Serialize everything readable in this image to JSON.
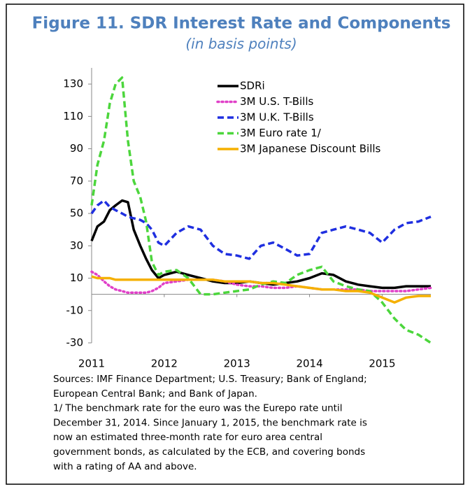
{
  "chart_data": {
    "type": "line",
    "title": "Figure 11. SDR Interest Rate and Components",
    "subtitle": "(in basis points)",
    "x": [
      2011,
      2011.08,
      2011.17,
      2011.25,
      2011.33,
      2011.42,
      2011.5,
      2011.58,
      2011.67,
      2011.75,
      2011.83,
      2011.92,
      2012,
      2012.17,
      2012.33,
      2012.5,
      2012.67,
      2012.83,
      2013,
      2013.17,
      2013.33,
      2013.5,
      2013.67,
      2013.83,
      2014,
      2014.17,
      2014.33,
      2014.5,
      2014.67,
      2014.83,
      2015,
      2015.17,
      2015.33,
      2015.5,
      2015.67
    ],
    "series": [
      {
        "name": "SDRi",
        "color": "#000000",
        "dash": "none",
        "values": [
          33,
          42,
          45,
          52,
          55,
          58,
          57,
          40,
          30,
          22,
          15,
          10,
          12,
          14,
          12,
          10,
          8,
          7,
          7,
          8,
          7,
          6,
          7,
          8,
          10,
          13,
          12,
          8,
          6,
          5,
          4,
          4,
          5,
          5,
          5
        ]
      },
      {
        "name": "3M U.S. T-Bills",
        "color": "#e040c8",
        "dash": "dot",
        "values": [
          14,
          12,
          8,
          5,
          3,
          2,
          1,
          1,
          1,
          1,
          2,
          4,
          7,
          8,
          9,
          9,
          9,
          8,
          6,
          5,
          5,
          4,
          4,
          5,
          4,
          3,
          3,
          3,
          3,
          2,
          2,
          2,
          2,
          3,
          4
        ]
      },
      {
        "name": "3M U.K. T-Bills",
        "color": "#1f2fe0",
        "dash": "dash",
        "values": [
          50,
          55,
          58,
          54,
          52,
          50,
          48,
          47,
          46,
          44,
          40,
          32,
          30,
          38,
          42,
          40,
          30,
          25,
          24,
          22,
          30,
          32,
          28,
          24,
          25,
          38,
          40,
          42,
          40,
          38,
          32,
          40,
          44,
          45,
          48
        ]
      },
      {
        "name": "3M Euro rate 1/",
        "color": "#4cd63c",
        "dash": "dash",
        "values": [
          55,
          80,
          95,
          118,
          130,
          134,
          95,
          70,
          60,
          45,
          20,
          12,
          14,
          15,
          10,
          0,
          0,
          1,
          2,
          3,
          6,
          8,
          7,
          12,
          15,
          17,
          8,
          5,
          3,
          2,
          -5,
          -15,
          -22,
          -25,
          -30
        ]
      },
      {
        "name": "3M Japanese Discount Bills",
        "color": "#f5b000",
        "dash": "none",
        "values": [
          11,
          10,
          10,
          10,
          9,
          9,
          9,
          9,
          9,
          9,
          9,
          9,
          9,
          9,
          9,
          9,
          9,
          8,
          8,
          8,
          7,
          7,
          6,
          5,
          4,
          3,
          3,
          2,
          2,
          1,
          -2,
          -5,
          -2,
          -1,
          -1
        ]
      }
    ],
    "xlim": [
      2011,
      2015.67
    ],
    "xticks": [
      2011,
      2012,
      2013,
      2014,
      2015
    ],
    "ylim": [
      -30,
      140
    ],
    "yticks": [
      -30,
      -10,
      10,
      30,
      50,
      70,
      90,
      110,
      130
    ],
    "notes": [
      "Sources: IMF Finance Department; U.S. Treasury; Bank of England;",
      "European Central Bank; and Bank of Japan.",
      "1/ The benchmark rate for the euro was the Eurepo rate until",
      "December 31, 2014. Since January 1, 2015, the benchmark rate is",
      "now an estimated three-month rate for euro area central",
      "government bonds, as calculated by the ECB, and covering bonds",
      "with a rating of AA and above."
    ]
  }
}
